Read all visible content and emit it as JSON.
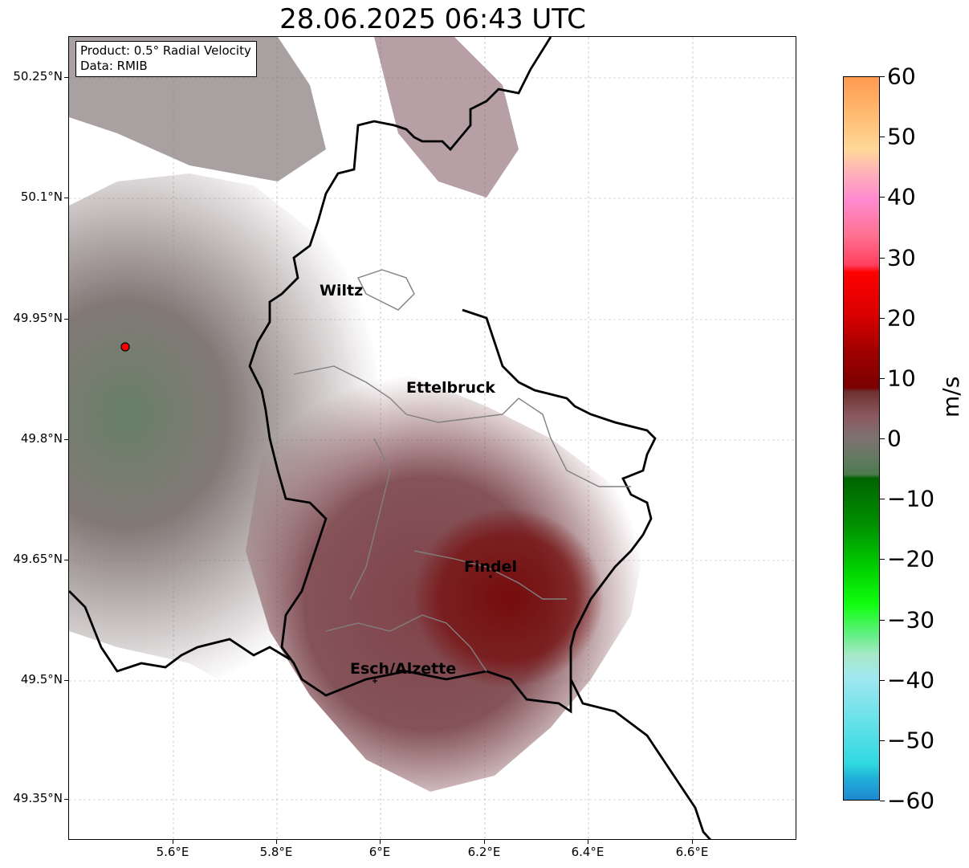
{
  "title": "28.06.2025 06:43 UTC",
  "info": {
    "line1": "Product: 0.5° Radial Velocity",
    "line2": "Data: RMIB"
  },
  "axes": {
    "y_ticks": [
      "50.25°N",
      "50.1°N",
      "49.95°N",
      "49.8°N",
      "49.65°N",
      "49.5°N",
      "49.35°N"
    ],
    "x_ticks": [
      "5.6°E",
      "5.8°E",
      "6°E",
      "6.2°E",
      "6.4°E",
      "6.6°E"
    ],
    "grid": true
  },
  "cities": [
    {
      "name": "Wiltz"
    },
    {
      "name": "Ettelbruck"
    },
    {
      "name": "Findel"
    },
    {
      "name": "Esch/Alzette"
    }
  ],
  "radar_site": {
    "color": "#ff0000"
  },
  "colorbar": {
    "unit": "m/s",
    "ticks": [
      "60",
      "50",
      "40",
      "30",
      "20",
      "10",
      "0",
      "−10",
      "−20",
      "−30",
      "−40",
      "−50",
      "−60"
    ],
    "range": [
      -60,
      60
    ]
  }
}
